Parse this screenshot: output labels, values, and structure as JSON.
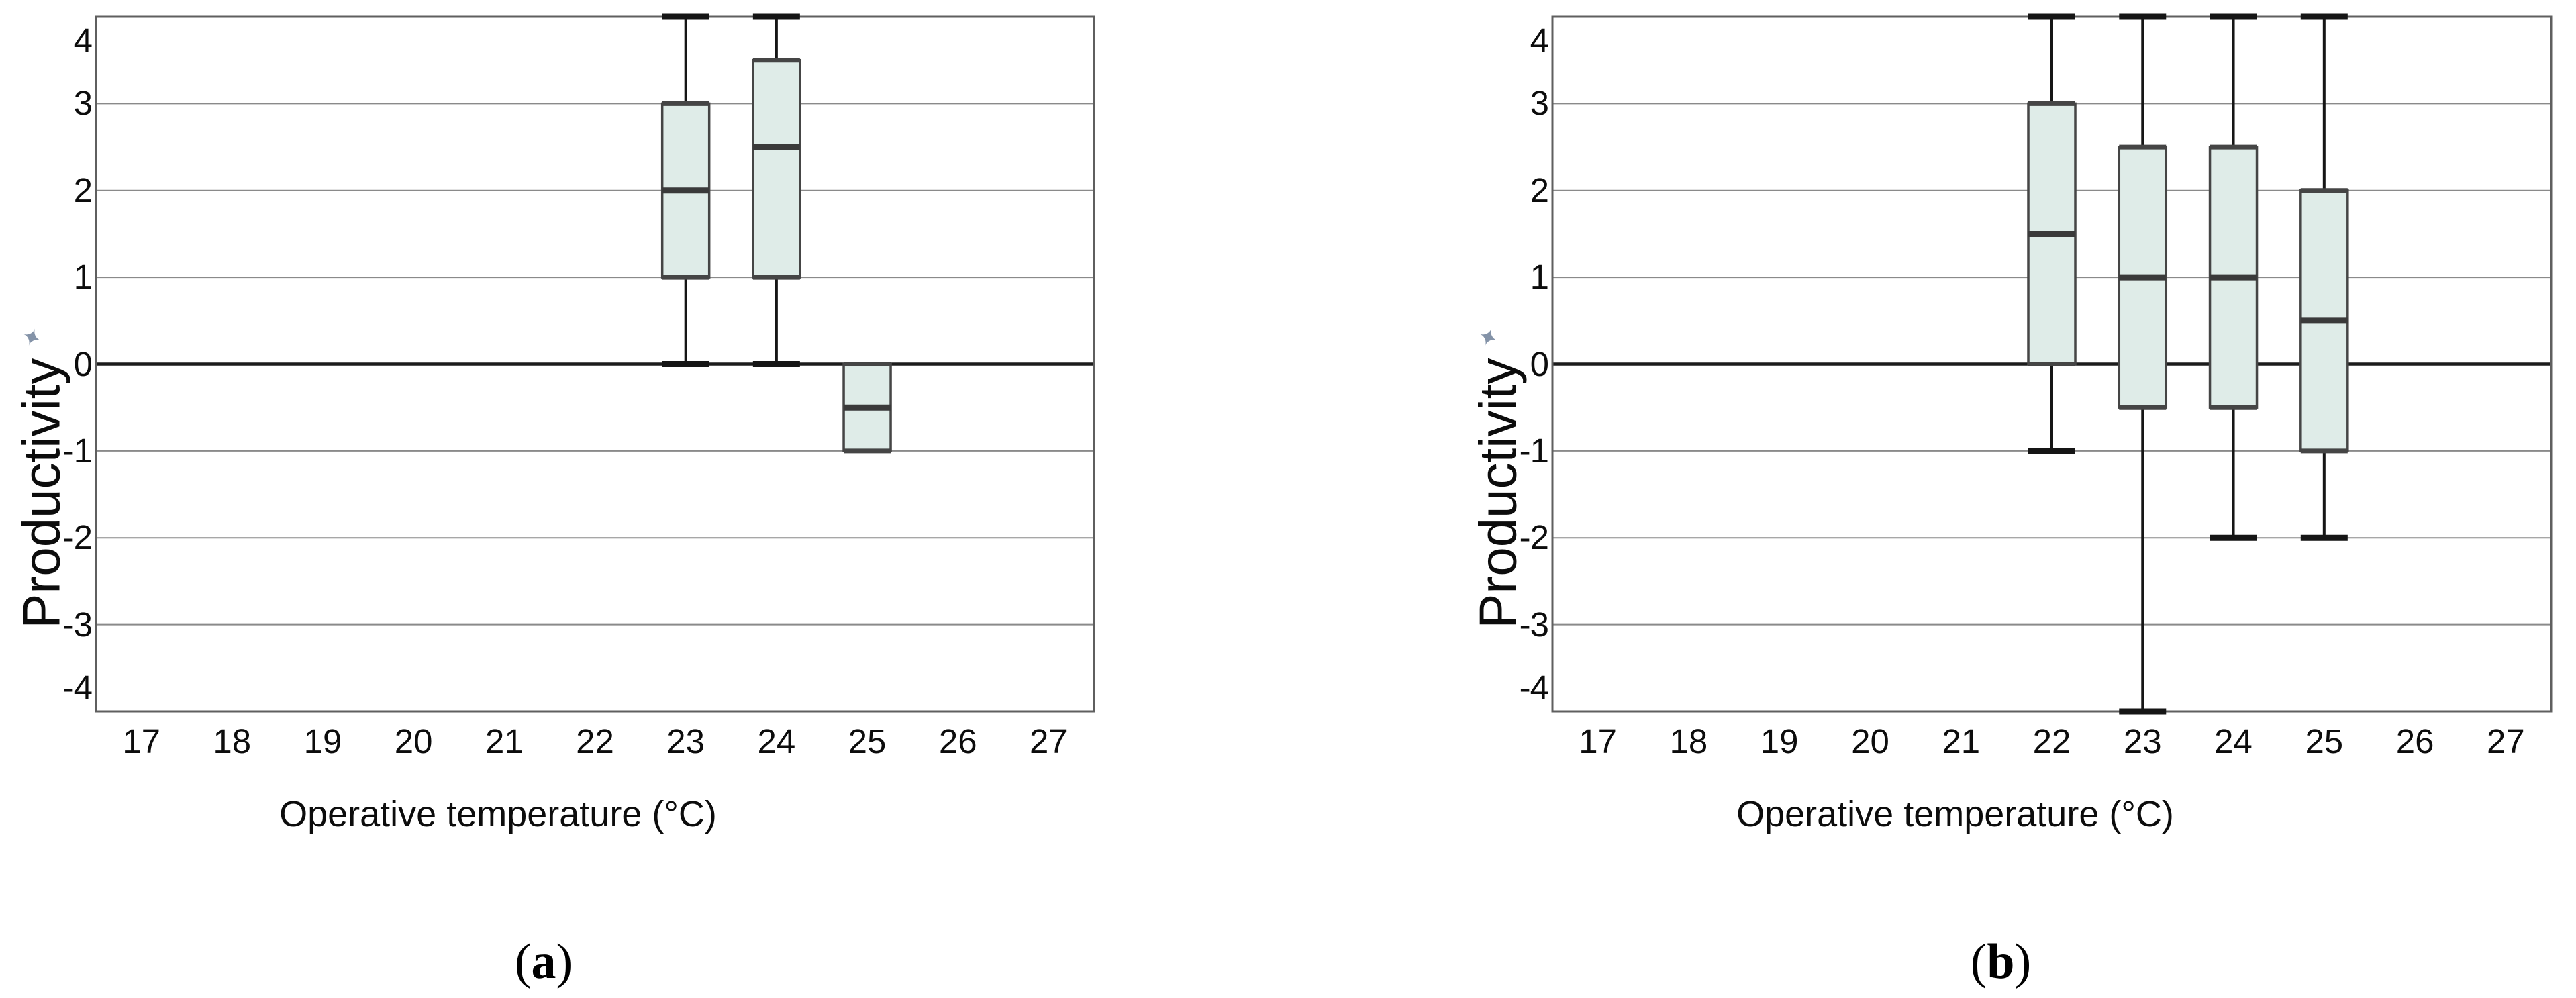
{
  "colors": {
    "box_fill": "#dfece8",
    "box_edge": "#454545",
    "median": "#3a3a3a",
    "whisker": "#151515",
    "gridline": "#8a8a8a",
    "zero_line": "#1c1c1c",
    "plot_border": "#5f5f5f",
    "pin_icon": "#8493a8",
    "text": "#0c0c0c"
  },
  "icons": {
    "pin_glyph": "✦"
  },
  "captions": {
    "a": {
      "open": "(",
      "letter": "a",
      "close": ")"
    },
    "b": {
      "open": "(",
      "letter": "b",
      "close": ")"
    }
  },
  "chart_data": [
    {
      "type": "boxplot",
      "panel": "a",
      "title": "",
      "xlabel": "Operative temperature (°C)",
      "ylabel": "Productivity",
      "x_ticks": [
        17,
        18,
        19,
        20,
        21,
        22,
        23,
        24,
        25,
        26,
        27
      ],
      "y_ticks": [
        4,
        3,
        2,
        1,
        0,
        -1,
        -2,
        -3,
        -4
      ],
      "ylim": [
        -4,
        4
      ],
      "grid": true,
      "boxes": [
        {
          "x": 23,
          "whisker_low": 0,
          "q1": 1,
          "median": 2,
          "q3": 3,
          "whisker_high": null,
          "clipped_high": true
        },
        {
          "x": 24,
          "whisker_low": 0,
          "q1": 1,
          "median": 2.5,
          "q3": 3.5,
          "whisker_high": null,
          "clipped_high": true
        },
        {
          "x": 25,
          "whisker_low": null,
          "q1": -1,
          "median": -0.5,
          "q3": 0,
          "whisker_high": null
        }
      ]
    },
    {
      "type": "boxplot",
      "panel": "b",
      "title": "",
      "xlabel": "Operative temperature (°C)",
      "ylabel": "Productivity",
      "x_ticks": [
        17,
        18,
        19,
        20,
        21,
        22,
        23,
        24,
        25,
        26,
        27
      ],
      "y_ticks": [
        4,
        3,
        2,
        1,
        0,
        -1,
        -2,
        -3,
        -4
      ],
      "ylim": [
        -4,
        4
      ],
      "grid": true,
      "boxes": [
        {
          "x": 22,
          "whisker_low": -1,
          "q1": 0,
          "median": 1.5,
          "q3": 3,
          "whisker_high": null,
          "clipped_high": true
        },
        {
          "x": 23,
          "whisker_low": null,
          "clipped_low": true,
          "q1": -0.5,
          "median": 1,
          "q3": 2.5,
          "whisker_high": null,
          "clipped_high": true
        },
        {
          "x": 24,
          "whisker_low": -2,
          "q1": -0.5,
          "median": 1,
          "q3": 2.5,
          "whisker_high": null,
          "clipped_high": true
        },
        {
          "x": 25,
          "whisker_low": -2,
          "q1": -1,
          "median": 0.5,
          "q3": 2,
          "whisker_high": null,
          "clipped_high": true
        }
      ]
    }
  ]
}
